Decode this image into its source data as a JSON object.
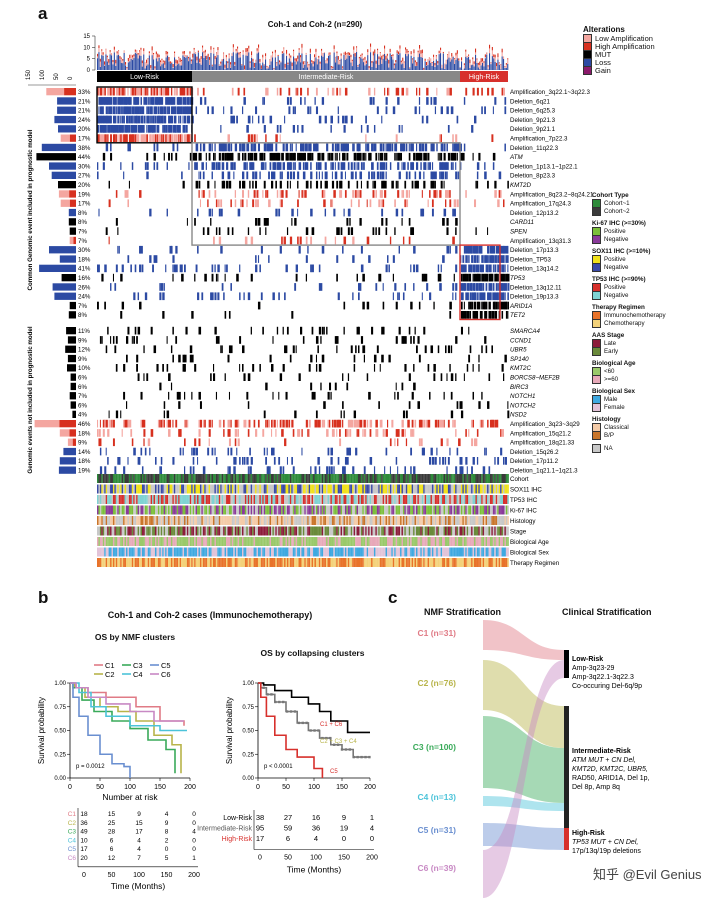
{
  "panels": {
    "a": "a",
    "b": "b",
    "c": "c"
  },
  "colors": {
    "low_amp": "#f4a6a0",
    "high_amp": "#d7301f",
    "mut": "#000000",
    "loss": "#2c4aa3",
    "gain": "#8b1a6b",
    "low_risk": "#000000",
    "intermediate_risk": "#888888",
    "high_risk": "#d7302c",
    "c1": "#e07b86",
    "c2": "#b8b44a",
    "c3": "#3aaa5a",
    "c4": "#4cc3d9",
    "c5": "#6a8fd0",
    "c6": "#c889c4"
  },
  "panel_a": {
    "title": "Coh-1 and Coh-2 (n=290)",
    "top_axis_ticks": [
      "15",
      "10",
      "5",
      "0"
    ],
    "left_axis_ticks": [
      "150",
      "100",
      "50",
      "0"
    ],
    "risk_groups": [
      "Low-Risk",
      "Intermediate-Risk",
      "High-Risk"
    ],
    "side_label_top": "Common Genomic event included in prognostic model",
    "side_label_bottom": "Genomic events not included in prognostic model",
    "rows_top": [
      {
        "pct": "33%",
        "name": "Amplification_3q22.1~3q22.3",
        "type": "amp",
        "italic": false
      },
      {
        "pct": "21%",
        "name": "Deletion_6q21",
        "type": "del",
        "italic": false
      },
      {
        "pct": "21%",
        "name": "Deletion_6q25.3",
        "type": "del",
        "italic": false
      },
      {
        "pct": "24%",
        "name": "Deletion_9p21.3",
        "type": "del",
        "italic": false
      },
      {
        "pct": "20%",
        "name": "Deletion_9p21.1",
        "type": "del",
        "italic": false
      },
      {
        "pct": "17%",
        "name": "Amplification_7p22.3",
        "type": "amp",
        "italic": false
      },
      {
        "pct": "38%",
        "name": "Deletion_11q22.3",
        "type": "del",
        "italic": false
      },
      {
        "pct": "44%",
        "name": "ATM",
        "type": "mut",
        "italic": true
      },
      {
        "pct": "30%",
        "name": "Deletion_1p13.1~1p22.1",
        "type": "del",
        "italic": false
      },
      {
        "pct": "27%",
        "name": "Deletion_8p23.3",
        "type": "del",
        "italic": false
      },
      {
        "pct": "20%",
        "name": "KMT2D",
        "type": "mut",
        "italic": true
      },
      {
        "pct": "19%",
        "name": "Amplification_8q23.2~8q24.21",
        "type": "amp",
        "italic": false
      },
      {
        "pct": "17%",
        "name": "Amplification_17q24.3",
        "type": "amp",
        "italic": false
      },
      {
        "pct": "8%",
        "name": "Deletion_12p13.2",
        "type": "del",
        "italic": false
      },
      {
        "pct": "8%",
        "name": "CARD11",
        "type": "mut",
        "italic": true
      },
      {
        "pct": "7%",
        "name": "SPEN",
        "type": "mut",
        "italic": true
      },
      {
        "pct": "7%",
        "name": "Amplification_13q31.3",
        "type": "amp",
        "italic": false
      },
      {
        "pct": "30%",
        "name": "Deletion_17p13.3",
        "type": "del",
        "italic": false
      },
      {
        "pct": "18%",
        "name": "Deletion_TP53",
        "type": "del",
        "italic": false
      },
      {
        "pct": "41%",
        "name": "Deletion_13q14.2",
        "type": "del",
        "italic": false
      },
      {
        "pct": "16%",
        "name": "TP53",
        "type": "mut",
        "italic": true
      },
      {
        "pct": "26%",
        "name": "Deletion_13q12.11",
        "type": "del",
        "italic": false
      },
      {
        "pct": "24%",
        "name": "Deletion_19p13.3",
        "type": "del",
        "italic": false
      },
      {
        "pct": "7%",
        "name": "ARID1A",
        "type": "mut",
        "italic": true
      },
      {
        "pct": "8%",
        "name": "TET2",
        "type": "mut",
        "italic": true
      }
    ],
    "rows_bottom": [
      {
        "pct": "11%",
        "name": "SMARCA4",
        "type": "mut",
        "italic": true
      },
      {
        "pct": "9%",
        "name": "CCND1",
        "type": "mut",
        "italic": true
      },
      {
        "pct": "12%",
        "name": "UBR5",
        "type": "mut",
        "italic": true
      },
      {
        "pct": "9%",
        "name": "SP140",
        "type": "mut",
        "italic": true
      },
      {
        "pct": "10%",
        "name": "KMT2C",
        "type": "mut",
        "italic": true
      },
      {
        "pct": "6%",
        "name": "BORCS8~MEF2B",
        "type": "mut",
        "italic": true
      },
      {
        "pct": "6%",
        "name": "BIRC3",
        "type": "mut",
        "italic": true
      },
      {
        "pct": "7%",
        "name": "NOTCH1",
        "type": "mut",
        "italic": true
      },
      {
        "pct": "6%",
        "name": "NOTCH2",
        "type": "mut",
        "italic": true
      },
      {
        "pct": "4%",
        "name": "NSD2",
        "type": "mut",
        "italic": true
      },
      {
        "pct": "46%",
        "name": "Amplification_3q23~3q29",
        "type": "amp",
        "italic": false
      },
      {
        "pct": "18%",
        "name": "Amplification_15q21.2",
        "type": "amp",
        "italic": false
      },
      {
        "pct": "9%",
        "name": "Amplification_18q21.33",
        "type": "amp",
        "italic": false
      },
      {
        "pct": "14%",
        "name": "Deletion_15q26.2",
        "type": "del",
        "italic": false
      },
      {
        "pct": "18%",
        "name": "Deletion_17p11.2",
        "type": "del",
        "italic": false
      },
      {
        "pct": "19%",
        "name": "Deletion_1q21.1~1q21.3",
        "type": "del",
        "italic": false
      }
    ],
    "annotation_tracks": [
      "Cohort",
      "SOX11 IHC",
      "TP53 IHC",
      "Ki-67 IHC",
      "Histology",
      "Stage",
      "Biological Age",
      "Biological Sex",
      "Therapy Regimen"
    ],
    "legend": {
      "alterations_title": "Alterations",
      "alterations": [
        {
          "label": "Low Amplification",
          "color": "#f4a6a0"
        },
        {
          "label": "High Amplification",
          "color": "#d7301f"
        },
        {
          "label": "MUT",
          "color": "#000000"
        },
        {
          "label": "Loss",
          "color": "#2c4aa3"
        },
        {
          "label": "Gain",
          "color": "#8b1a6b"
        }
      ],
      "groups": [
        {
          "title": "Cohort Type",
          "items": [
            {
              "label": "Cohort~1",
              "color": "#2e8b3a"
            },
            {
              "label": "Cohort~2",
              "color": "#3a3a3a"
            }
          ]
        },
        {
          "title": "Ki-67 IHC (>=30%)",
          "items": [
            {
              "label": "Positive",
              "color": "#7bbf3a"
            },
            {
              "label": "Negative",
              "color": "#8a3a9a"
            }
          ]
        },
        {
          "title": "SOX11 IHC (>=10%)",
          "items": [
            {
              "label": "Positive",
              "color": "#f1e21b"
            },
            {
              "label": "Negative",
              "color": "#3a4aa8"
            }
          ]
        },
        {
          "title": "TP53 IHC (>=90%)",
          "items": [
            {
              "label": "Positive",
              "color": "#d7302c"
            },
            {
              "label": "Negative",
              "color": "#7fd3d3"
            }
          ]
        },
        {
          "title": "Therapy Regimen",
          "items": [
            {
              "label": "Immunochemotherapy",
              "color": "#e8732a"
            },
            {
              "label": "Chemotherapy",
              "color": "#f3d27a"
            }
          ]
        },
        {
          "title": "AAS Stage",
          "items": [
            {
              "label": "Late",
              "color": "#8c1c3a"
            },
            {
              "label": "Early",
              "color": "#6a8a3a"
            }
          ]
        },
        {
          "title": "Biological Age",
          "items": [
            {
              "label": "<60",
              "color": "#9ac96a"
            },
            {
              "label": ">=60",
              "color": "#e7a9b9"
            }
          ]
        },
        {
          "title": "Biological Sex",
          "items": [
            {
              "label": "Male",
              "color": "#3fa9e0"
            },
            {
              "label": "Female",
              "color": "#e2c3d8"
            }
          ]
        },
        {
          "title": "Histology",
          "items": [
            {
              "label": "Classical",
              "color": "#f4cba8"
            },
            {
              "label": "B/P",
              "color": "#c9752a"
            }
          ]
        },
        {
          "title": "",
          "items": [
            {
              "label": "NA",
              "color": "#c8c8c8"
            }
          ]
        }
      ]
    }
  },
  "panel_b": {
    "title": "Coh-1 and Coh-2 cases (Immunochemotherapy)",
    "left_title": "OS by NMF clusters",
    "right_title": "OS by collapsing clusters",
    "ylabel": "Survival probability",
    "xlabel": "Time (Months)",
    "number_at_risk": "Number at risk",
    "left_legend": [
      "C1",
      "C2",
      "C3",
      "C4",
      "C5",
      "C6"
    ],
    "left_p": "p = 0.0012",
    "right_p": "p < 0.0001",
    "right_curve_labels": [
      "C1 + C6",
      "C2 + C3 + C4",
      "C5"
    ],
    "x_ticks": [
      "0",
      "50",
      "100",
      "150",
      "200"
    ],
    "y_ticks": [
      "0.00",
      "0.25",
      "0.50",
      "0.75",
      "1.00"
    ],
    "left_risk_table": [
      {
        "group": "C1",
        "values": [
          "18",
          "15",
          "9",
          "4",
          "0"
        ]
      },
      {
        "group": "C2",
        "values": [
          "36",
          "25",
          "15",
          "9",
          "0"
        ]
      },
      {
        "group": "C3",
        "values": [
          "49",
          "28",
          "17",
          "8",
          "4"
        ]
      },
      {
        "group": "C4",
        "values": [
          "10",
          "6",
          "4",
          "2",
          "0"
        ]
      },
      {
        "group": "C5",
        "values": [
          "17",
          "6",
          "4",
          "0",
          "0"
        ]
      },
      {
        "group": "C6",
        "values": [
          "20",
          "12",
          "7",
          "5",
          "1"
        ]
      }
    ],
    "right_risk_table": [
      {
        "group": "Low-Risk",
        "values": [
          "38",
          "27",
          "16",
          "9",
          "1"
        ]
      },
      {
        "group": "Intermediate-Risk",
        "values": [
          "95",
          "59",
          "36",
          "19",
          "4"
        ]
      },
      {
        "group": "High-Risk",
        "values": [
          "17",
          "6",
          "4",
          "0",
          "0"
        ]
      }
    ]
  },
  "panel_c": {
    "left_title": "NMF Stratification",
    "right_title": "Clinical Stratification",
    "clusters": [
      "C1 (n=31)",
      "C2 (n=76)",
      "C3 (n=100)",
      "C4 (n=13)",
      "C5 (n=31)",
      "C6 (n=39)"
    ],
    "low_risk": {
      "title": "Low-Risk",
      "lines": [
        "Amp-3q23-29",
        "Amp-3q22.1-3q22.3",
        "Co-occuring Del-6q/9p"
      ]
    },
    "intermediate_risk": {
      "title": "Intermediate-Risk",
      "lines": [
        "ATM MUT + CN Del,",
        "KMT2D, KMT2C, UBR5,",
        "RAD50, ARID1A, Del 1p,",
        "Del 8p, Amp 8q"
      ]
    },
    "high_risk": {
      "title": "High-Risk",
      "lines": [
        "TP53 MUT + CN Del,",
        "17p/13q/19p deletions"
      ]
    },
    "watermark": "知乎 @Evil Genius"
  }
}
